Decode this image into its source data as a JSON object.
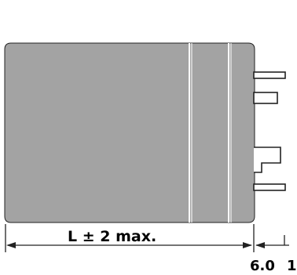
{
  "labels": {
    "length_label": "L ± 2 max.",
    "lead_dim_a": "6.0",
    "lead_dim_b": "1"
  },
  "colors": {
    "body_fill": "#a3a3a3",
    "outline": "#222222",
    "lead_fill": "#ffffff"
  }
}
